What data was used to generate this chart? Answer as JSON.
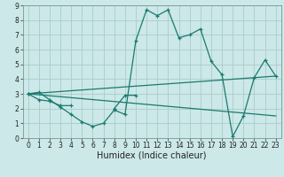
{
  "title": "",
  "xlabel": "Humidex (Indice chaleur)",
  "background_color": "#cce8e8",
  "grid_color": "#aacccc",
  "line_color": "#1a7a6e",
  "x_values": [
    0,
    1,
    2,
    3,
    4,
    5,
    6,
    7,
    8,
    9,
    10,
    11,
    12,
    13,
    14,
    15,
    16,
    17,
    18,
    19,
    20,
    21,
    22,
    23
  ],
  "series1": [
    3.0,
    3.1,
    2.6,
    2.1,
    1.6,
    1.1,
    0.8,
    1.0,
    1.9,
    1.6,
    6.6,
    8.7,
    8.3,
    8.7,
    6.8,
    7.0,
    7.4,
    5.2,
    4.3,
    0.1,
    1.5,
    4.1,
    5.3,
    4.2
  ],
  "series2_segments": [
    {
      "x": [
        0,
        1,
        2,
        3,
        4
      ],
      "y": [
        3.0,
        2.6,
        2.5,
        2.2,
        2.2
      ]
    },
    {
      "x": [
        8,
        9,
        10
      ],
      "y": [
        2.0,
        2.9,
        2.9
      ]
    }
  ],
  "series3_x": [
    0,
    23
  ],
  "series3_y": [
    3.0,
    4.2
  ],
  "series4_x": [
    0,
    23
  ],
  "series4_y": [
    3.0,
    1.5
  ],
  "xlim": [
    -0.5,
    23.5
  ],
  "ylim": [
    0,
    9
  ],
  "yticks": [
    0,
    1,
    2,
    3,
    4,
    5,
    6,
    7,
    8,
    9
  ],
  "xticks": [
    0,
    1,
    2,
    3,
    4,
    5,
    6,
    7,
    8,
    9,
    10,
    11,
    12,
    13,
    14,
    15,
    16,
    17,
    18,
    19,
    20,
    21,
    22,
    23
  ],
  "xlabel_fontsize": 7,
  "tick_fontsize": 5.5,
  "line_width": 0.9,
  "marker_size": 3.0,
  "marker_ew": 0.9
}
